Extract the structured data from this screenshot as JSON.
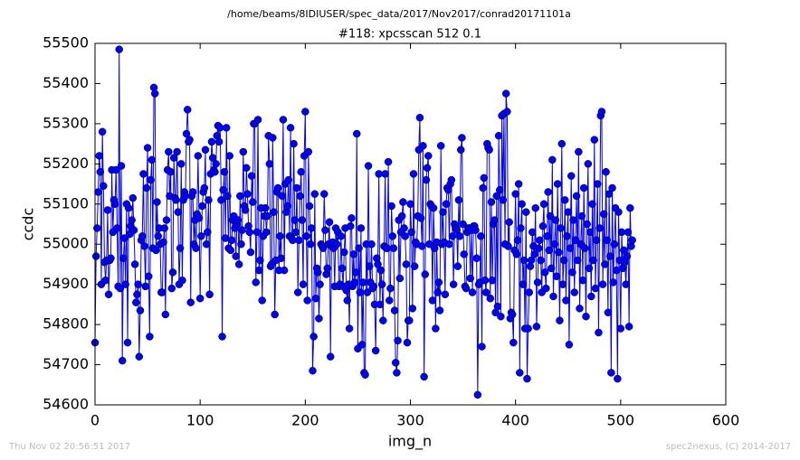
{
  "chart_data": {
    "type": "line",
    "suptitle": "/home/beams/8IDIUSER/spec_data/2017/Nov2017/conrad20171101a",
    "title": "#118: xpcsscan 512 0.1",
    "xlabel": "img_n",
    "ylabel": "ccdc",
    "footer_left": "Thu Nov 02 20:56:51 2017",
    "footer_right": "spec2nexus, (C) 2014-2017",
    "xlim": [
      0,
      600
    ],
    "xticks": [
      0,
      100,
      200,
      300,
      400,
      500,
      600
    ],
    "ylim": [
      54600,
      55500
    ],
    "yticks": [
      54600,
      54700,
      54800,
      54900,
      55000,
      55100,
      55200,
      55300,
      55400,
      55500
    ],
    "x": [
      0,
      1,
      2,
      3,
      4,
      5,
      6,
      7,
      8,
      9,
      10,
      11,
      12,
      13,
      14,
      15,
      16,
      17,
      18,
      19,
      20,
      21,
      22,
      23,
      24,
      25,
      26,
      27,
      28,
      29,
      30,
      31,
      32,
      33,
      34,
      35,
      36,
      37,
      38,
      39,
      40,
      41,
      42,
      43,
      44,
      45,
      46,
      47,
      48,
      49,
      50,
      51,
      52,
      53,
      54,
      55,
      56,
      57,
      58,
      59,
      60,
      61,
      62,
      63,
      64,
      65,
      66,
      67,
      68,
      69,
      70,
      71,
      72,
      73,
      74,
      75,
      76,
      77,
      78,
      79,
      80,
      81,
      82,
      83,
      84,
      85,
      86,
      87,
      88,
      89,
      90,
      91,
      92,
      93,
      94,
      95,
      96,
      97,
      98,
      99,
      100,
      101,
      102,
      103,
      104,
      105,
      106,
      107,
      108,
      109,
      110,
      111,
      112,
      113,
      114,
      115,
      116,
      117,
      118,
      119,
      120,
      121,
      122,
      123,
      124,
      125,
      126,
      127,
      128,
      129,
      130,
      131,
      132,
      133,
      134,
      135,
      136,
      137,
      138,
      139,
      140,
      141,
      142,
      143,
      144,
      145,
      146,
      147,
      148,
      149,
      150,
      151,
      152,
      153,
      154,
      155,
      156,
      157,
      158,
      159,
      160,
      161,
      162,
      163,
      164,
      165,
      166,
      167,
      168,
      169,
      170,
      171,
      172,
      173,
      174,
      175,
      176,
      177,
      178,
      179,
      180,
      181,
      182,
      183,
      184,
      185,
      186,
      187,
      188,
      189,
      190,
      191,
      192,
      193,
      194,
      195,
      196,
      197,
      198,
      199,
      200,
      201,
      202,
      203,
      204,
      205,
      206,
      207,
      208,
      209,
      210,
      211,
      212,
      213,
      214,
      215,
      216,
      217,
      218,
      219,
      220,
      221,
      222,
      223,
      224,
      225,
      226,
      227,
      228,
      229,
      230,
      231,
      232,
      233,
      234,
      235,
      236,
      237,
      238,
      239,
      240,
      241,
      242,
      243,
      244,
      245,
      246,
      247,
      248,
      249,
      250,
      251,
      252,
      253,
      254,
      255,
      256,
      257,
      258,
      259,
      260,
      261,
      262,
      263,
      264,
      265,
      266,
      267,
      268,
      269,
      270,
      271,
      272,
      273,
      274,
      275,
      276,
      277,
      278,
      279,
      280,
      281,
      282,
      283,
      284,
      285,
      286,
      287,
      288,
      289,
      290,
      291,
      292,
      293,
      294,
      295,
      296,
      297,
      298,
      299,
      300,
      301,
      302,
      303,
      304,
      305,
      306,
      307,
      308,
      309,
      310,
      311,
      312,
      313,
      314,
      315,
      316,
      317,
      318,
      319,
      320,
      321,
      322,
      323,
      324,
      325,
      326,
      327,
      328,
      329,
      330,
      331,
      332,
      333,
      334,
      335,
      336,
      337,
      338,
      339,
      340,
      341,
      342,
      343,
      344,
      345,
      346,
      347,
      348,
      349,
      350,
      351,
      352,
      353,
      354,
      355,
      356,
      357,
      358,
      359,
      360,
      361,
      362,
      363,
      364,
      365,
      366,
      367,
      368,
      369,
      370,
      371,
      372,
      373,
      374,
      375,
      376,
      377,
      378,
      379,
      380,
      381,
      382,
      383,
      384,
      385,
      386,
      387,
      388,
      389,
      390,
      391,
      392,
      393,
      394,
      395,
      396,
      397,
      398,
      399,
      400,
      401,
      402,
      403,
      404,
      405,
      406,
      407,
      408,
      409,
      410,
      411,
      412,
      413,
      414,
      415,
      416,
      417,
      418,
      419,
      420,
      421,
      422,
      423,
      424,
      425,
      426,
      427,
      428,
      429,
      430,
      431,
      432,
      433,
      434,
      435,
      436,
      437,
      438,
      439,
      440,
      441,
      442,
      443,
      444,
      445,
      446,
      447,
      448,
      449,
      450,
      451,
      452,
      453,
      454,
      455,
      456,
      457,
      458,
      459,
      460,
      461,
      462,
      463,
      464,
      465,
      466,
      467,
      468,
      469,
      470,
      471,
      472,
      473,
      474,
      475,
      476,
      477,
      478,
      479,
      480,
      481,
      482,
      483,
      484,
      485,
      486,
      487,
      488,
      489,
      490,
      491,
      492,
      493,
      494,
      495,
      496,
      497,
      498,
      499,
      500,
      501,
      502,
      503,
      504,
      505,
      506,
      507,
      508,
      509,
      510,
      511
    ],
    "series": [
      {
        "color": "#0000ff",
        "values": [
          54755,
          54970,
          55040,
          55130,
          55220,
          55180,
          54900,
          55280,
          55145,
          54955,
          54910,
          54960,
          55085,
          54875,
          54960,
          54965,
          55185,
          55030,
          55110,
          55100,
          55185,
          55040,
          54895,
          55485,
          54890,
          55195,
          54710,
          54965,
          55015,
          54900,
          55100,
          54755,
          55090,
          55025,
          55045,
          55060,
          55115,
          55035,
          54950,
          54855,
          54875,
          54900,
          54720,
          54835,
          55010,
          55020,
          55175,
          54995,
          54895,
          55140,
          55240,
          54920,
          54770,
          55160,
          55210,
          54990,
          55390,
          55375,
          54985,
          55105,
          55020,
          55040,
          55000,
          54880,
          54880,
          55005,
          55040,
          54825,
          55060,
          55185,
          55230,
          55120,
          55180,
          54890,
          54930,
          55215,
          55115,
          55110,
          55230,
          55080,
          54900,
          54990,
          55200,
          54910,
          55110,
          55130,
          55120,
          55275,
          55335,
          55255,
          55260,
          54855,
          55120,
          55130,
          55000,
          55060,
          54990,
          55075,
          55220,
          55065,
          54865,
          55020,
          55095,
          55130,
          55140,
          55235,
          55000,
          55030,
          55110,
          54875,
          55175,
          55255,
          55215,
          55185,
          55180,
          55200,
          55270,
          55295,
          55255,
          55290,
          55110,
          54770,
          55135,
          55180,
          55015,
          55290,
          55120,
          54990,
          55220,
          54985,
          55010,
          55060,
          55070,
          55040,
          54970,
          55050,
          55060,
          54950,
          55120,
          55000,
          55035,
          55230,
          55095,
          55085,
          55190,
          55125,
          55045,
          55030,
          54980,
          55170,
          55105,
          55300,
          55300,
          54905,
          55030,
          55310,
          54935,
          54960,
          55090,
          54860,
          55020,
          55070,
          55090,
          55030,
          55070,
          55270,
          55200,
          54945,
          54950,
          55265,
          55080,
          54825,
          54960,
          55130,
          55140,
          54935,
          55020,
          54965,
          55120,
          55310,
          54935,
          55150,
          55080,
          55095,
          55160,
          55020,
          55290,
          55015,
          55010,
          55250,
          55060,
          55030,
          55140,
          54880,
          55010,
          55120,
          55180,
          55060,
          54900,
          55220,
          55330,
          55020,
          54860,
          55230,
          55095,
          55000,
          55040,
          54685,
          54770,
          55125,
          54865,
          54940,
          54930,
          54815,
          54900,
          55000,
          54995,
          54990,
          55125,
          55035,
          54925,
          54940,
          55000,
          55055,
          54720,
          54995,
          55005,
          54990,
          54895,
          55040,
          55000,
          55030,
          54895,
          54900,
          55020,
          54940,
          54895,
          54980,
          55040,
          54885,
          54860,
          54900,
          54790,
          55045,
          55065,
          54895,
          54975,
          54905,
          54930,
          55275,
          54740,
          54990,
          54880,
          55040,
          54750,
          54905,
          54680,
          54675,
          55000,
          54880,
          55195,
          54945,
          54905,
          55000,
          54890,
          54895,
          54850,
          54735,
          54965,
          54950,
          55175,
          54850,
          54935,
          54900,
          54810,
          54995,
          55175,
          54990,
          54990,
          55205,
          54860,
          54890,
          55095,
          55020,
          54990,
          54835,
          54705,
          54680,
          54760,
          55060,
          54915,
          55030,
          55070,
          55105,
          55040,
          55020,
          54950,
          54755,
          54810,
          54810,
          55100,
          55030,
          54840,
          55175,
          54945,
          55005,
          55000,
          55070,
          55235,
          55315,
          55065,
          54995,
          55245,
          54670,
          54925,
          55160,
          55190,
          55220,
          55000,
          55100,
          55095,
          54860,
          55090,
          54990,
          54790,
          55005,
          54880,
          54905,
          54835,
          55245,
          55000,
          55080,
          55005,
          54875,
          55100,
          55140,
          55135,
          55000,
          55150,
          55160,
          55020,
          54900,
          55050,
          55040,
          55035,
          54945,
          55110,
          55020,
          55235,
          55265,
          55050,
          54975,
          54895,
          54890,
          55030,
          55040,
          55040,
          54915,
          55035,
          54880,
          55045,
          55045,
          55035,
          54965,
          54625,
          54900,
          54905,
          55020,
          54745,
          55140,
          55165,
          54910,
          54880,
          55250,
          55240,
          55235,
          54865,
          55105,
          54910,
          55050,
          55060,
          54830,
          55120,
          54845,
          55270,
          55135,
          54820,
          55320,
          55110,
          55325,
          55000,
          55375,
          55330,
          54995,
          55055,
          54815,
          54830,
          54825,
          54755,
          54985,
          55125,
          54975,
          55010,
          55150,
          54680,
          55040,
          55100,
          54900,
          54960,
          54790,
          55080,
          54665,
          54790,
          54880,
          54945,
          54960,
          55030,
          54995,
          54975,
          55090,
          54795,
          54905,
          54990,
          55010,
          54960,
          54880,
          55045,
          55100,
          54930,
          54890,
          55020,
          55130,
          54985,
          55070,
          54940,
          55210,
          54870,
          55000,
          55060,
          54920,
          55150,
          54980,
          54810,
          55040,
          55250,
          54900,
          54960,
          55110,
          54860,
          55020,
          55080,
          54750,
          54990,
          55170,
          54930,
          55060,
          54880,
          55010,
          55120,
          54960,
          55230,
          54840,
          55000,
          55070,
          54910,
          55140,
          54990,
          54820,
          55050,
          55200,
          54940,
          55030,
          54870,
          55100,
          54960,
          55260,
          54890,
          55010,
          55150,
          54780,
          55040,
          55320,
          55330,
          54900,
          55075,
          54950,
          55180,
          55010,
          54830,
          55125,
          54970,
          54680,
          55140,
          54905,
          55000,
          55090,
          54935,
          54665,
          55080,
          54960,
          54790,
          55030,
          54940,
          54985,
          54955,
          54900,
          54970,
          55030,
          54795,
          55090,
          54995,
          55010
        ]
      }
    ]
  }
}
